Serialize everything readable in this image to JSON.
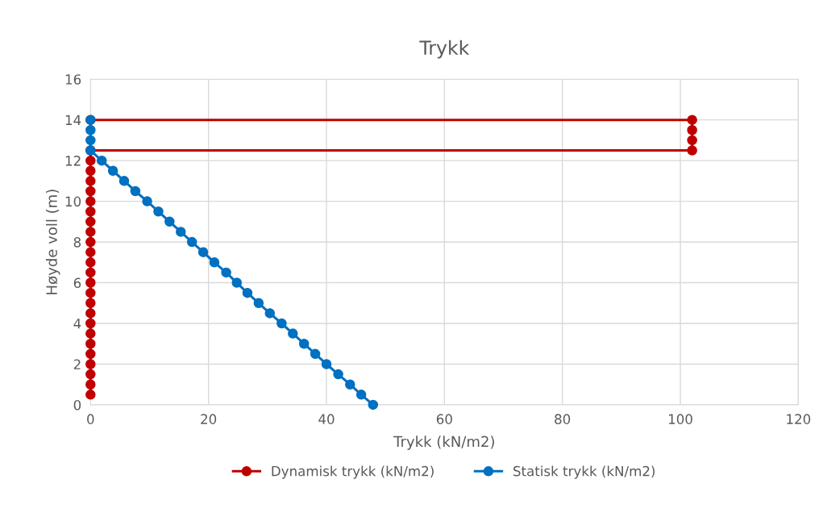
{
  "chart_data": {
    "type": "line",
    "title": "Trykk",
    "xlabel": "Trykk (kN/m2)",
    "ylabel": "Høyde voll (m)",
    "xlim": [
      0,
      120
    ],
    "xticks": [
      0,
      20,
      40,
      60,
      80,
      100,
      120
    ],
    "ylim": [
      0,
      16
    ],
    "yticks": [
      0,
      2,
      4,
      6,
      8,
      10,
      12,
      14,
      16
    ],
    "grid": true,
    "legend": "bottom",
    "marker": "circle",
    "line_style": "solid",
    "series": [
      {
        "name": "Dynamisk trykk (kN/m2)",
        "color": "#c00000",
        "x": [
          0,
          102,
          102,
          102,
          102,
          0,
          0,
          0,
          0,
          0,
          0,
          0,
          0,
          0,
          0,
          0,
          0,
          0,
          0,
          0,
          0,
          0,
          0,
          0,
          0,
          0,
          0,
          0,
          0,
          0
        ],
        "values": [
          14,
          14,
          13.5,
          13,
          12.5,
          12.5,
          12,
          11.5,
          11,
          10.5,
          10,
          9.5,
          9,
          8.5,
          8,
          7.5,
          7,
          6.5,
          6,
          5.5,
          5,
          4.5,
          4,
          3.5,
          3,
          2.5,
          2,
          1.5,
          1,
          0.5
        ]
      },
      {
        "name": "Statisk trykk (kN/m2)",
        "color": "#0070c0",
        "x": [
          0,
          0,
          0,
          0,
          1.9,
          3.8,
          5.7,
          7.6,
          9.6,
          11.5,
          13.4,
          15.3,
          17.2,
          19.1,
          21.0,
          23.0,
          24.8,
          26.6,
          28.5,
          30.4,
          32.4,
          34.3,
          36.2,
          38.1,
          40.0,
          42.0,
          44.0,
          45.9,
          47.9
        ],
        "values": [
          14,
          13.5,
          13,
          12.5,
          12,
          11.5,
          11,
          10.5,
          10,
          9.5,
          9,
          8.5,
          8,
          7.5,
          7,
          6.5,
          6,
          5.5,
          5,
          4.5,
          4,
          3.5,
          3,
          2.5,
          2,
          1.5,
          1,
          0.5,
          0
        ]
      }
    ]
  }
}
